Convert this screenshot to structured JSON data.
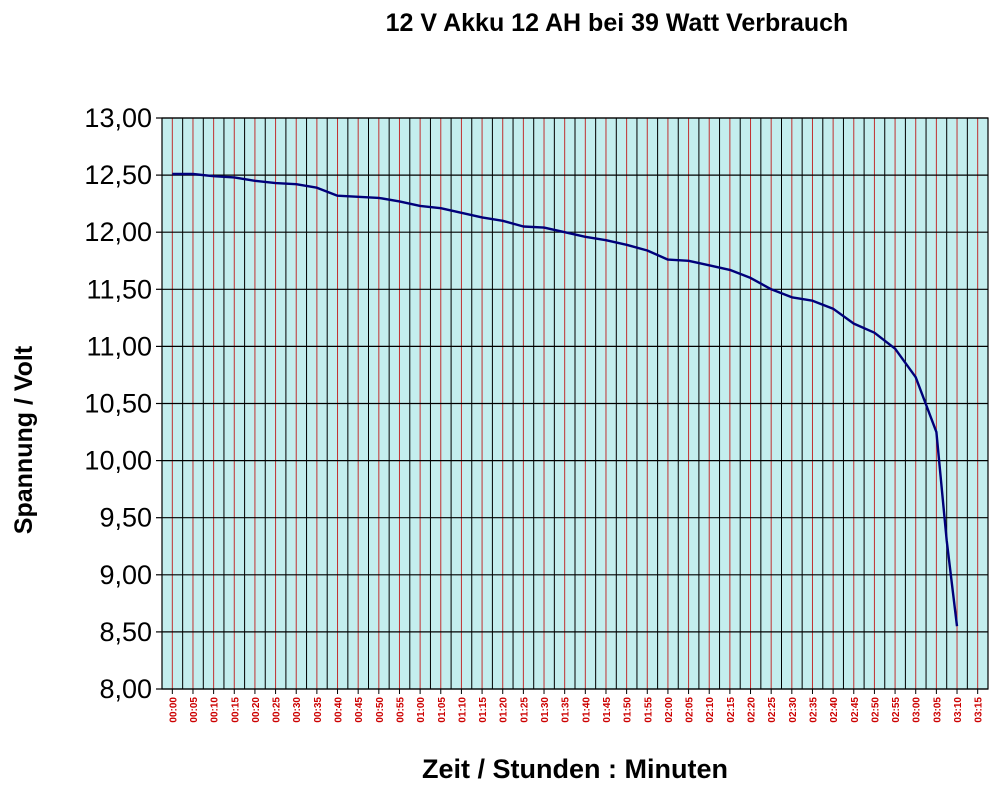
{
  "chart_data": {
    "type": "line",
    "title": "12 V Akku 12 AH bei 39 Watt Verbrauch",
    "xlabel": "Zeit / Stunden : Minuten",
    "ylabel": "Spannung / Volt",
    "ylim": [
      8.0,
      13.0
    ],
    "y_ticks": [
      "8,00",
      "8,50",
      "9,00",
      "9,50",
      "10,00",
      "10,50",
      "11,00",
      "11,50",
      "12,00",
      "12,50",
      "13,00"
    ],
    "x_ticks": [
      "00:00",
      "00:05",
      "00:10",
      "00:15",
      "00:20",
      "00:25",
      "00:30",
      "00:35",
      "00:40",
      "00:45",
      "00:50",
      "00:55",
      "01:00",
      "01:05",
      "01:10",
      "01:15",
      "01:20",
      "01:25",
      "01:30",
      "01:35",
      "01:40",
      "01:45",
      "01:50",
      "01:55",
      "02:00",
      "02:05",
      "02:10",
      "02:15",
      "02:20",
      "02:25",
      "02:30",
      "02:35",
      "02:40",
      "02:45",
      "02:50",
      "02:55",
      "03:00",
      "03:05",
      "03:10",
      "03:15"
    ],
    "grid": true,
    "colors": {
      "plot_background": "#c4eeee",
      "major_vertical_grid": "#000000",
      "minor_vertical_grid": "#c03030",
      "horizontal_grid": "#000000",
      "line": "#00007a",
      "x_tick_label": "#cc0000"
    },
    "series": [
      {
        "x_minutes": [
          0,
          5,
          10,
          15,
          20,
          25,
          30,
          35,
          40,
          45,
          50,
          55,
          60,
          65,
          70,
          75,
          80,
          85,
          90,
          95,
          100,
          105,
          110,
          115,
          120,
          125,
          130,
          135,
          140,
          145,
          150,
          155,
          160,
          165,
          170,
          175,
          180,
          185,
          187.5,
          190
        ],
        "values": [
          12.51,
          12.51,
          12.49,
          12.48,
          12.45,
          12.43,
          12.42,
          12.39,
          12.32,
          12.31,
          12.3,
          12.27,
          12.23,
          12.21,
          12.17,
          12.13,
          12.1,
          12.05,
          12.04,
          12.0,
          11.96,
          11.93,
          11.89,
          11.84,
          11.76,
          11.75,
          11.71,
          11.67,
          11.6,
          11.5,
          11.43,
          11.4,
          11.33,
          11.2,
          11.12,
          10.98,
          10.73,
          10.25,
          9.3,
          8.55
        ]
      }
    ]
  }
}
